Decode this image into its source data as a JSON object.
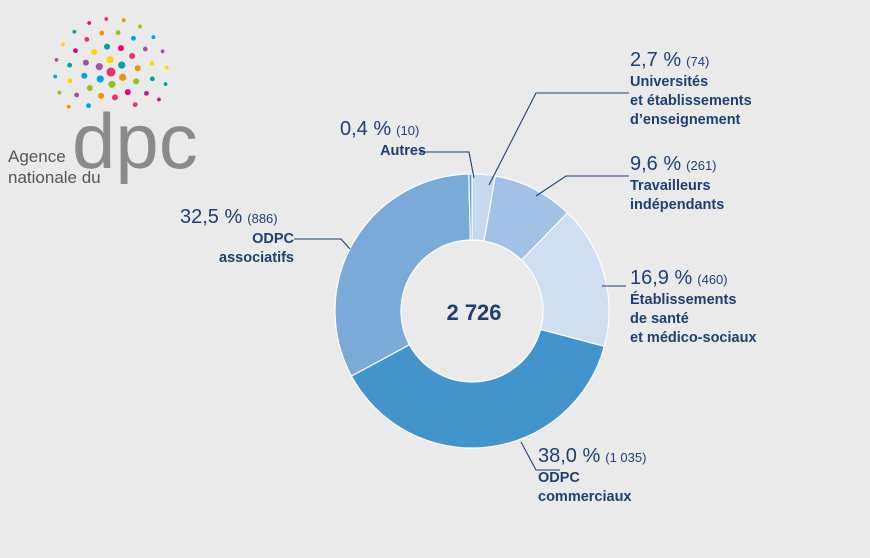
{
  "logo": {
    "line1": "Agence",
    "line2": "nationale du",
    "brand": "dpc",
    "dot_colors": [
      "#e8336d",
      "#f39200",
      "#95c11f",
      "#009fe3",
      "#a3529b",
      "#ffd500",
      "#00a19a",
      "#e6007e"
    ]
  },
  "chart_data": {
    "type": "pie",
    "variant": "donut",
    "center_label": "2 726",
    "slices": [
      {
        "pct_label": "2,7 %",
        "count_label": "(74)",
        "lines": [
          "Universités",
          "et établissements",
          "d’enseignement"
        ],
        "value": 74,
        "percent": 2.7,
        "color": "#c6d8ee"
      },
      {
        "pct_label": "9,6 %",
        "count_label": "(261)",
        "lines": [
          "Travailleurs",
          "indépendants"
        ],
        "value": 261,
        "percent": 9.6,
        "color": "#a1c2e6"
      },
      {
        "pct_label": "16,9 %",
        "count_label": "(460)",
        "lines": [
          "Établissements",
          "de santé",
          "et médico-sociaux"
        ],
        "value": 460,
        "percent": 16.9,
        "color": "#d0def2"
      },
      {
        "pct_label": "38,0 %",
        "count_label": "(1 035)",
        "lines": [
          "ODPC",
          "commerciaux"
        ],
        "value": 1035,
        "percent": 38.0,
        "color": "#4393cc"
      },
      {
        "pct_label": "32,5 %",
        "count_label": "(886)",
        "lines": [
          "ODPC",
          "associatifs"
        ],
        "value": 886,
        "percent": 32.5,
        "color": "#7aaad8"
      },
      {
        "pct_label": "0,4 %",
        "count_label": "(10)",
        "lines": [
          "Autres"
        ],
        "value": 10,
        "percent": 0.4,
        "color": "#5c9bd1"
      }
    ]
  }
}
